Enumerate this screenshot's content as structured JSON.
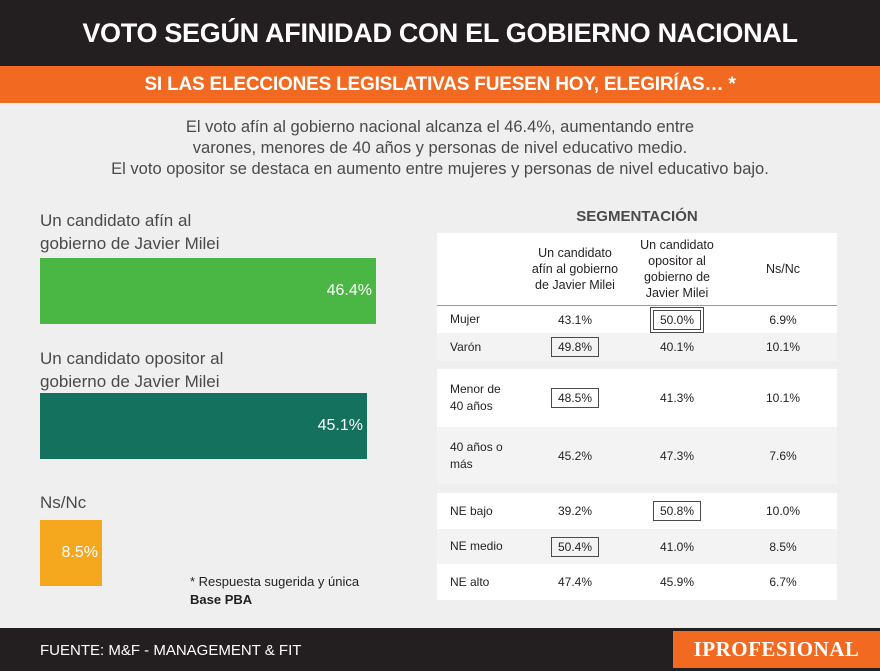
{
  "header": {
    "title": "VOTO SEGÚN AFINIDAD CON EL GOBIERNO NACIONAL",
    "subtitle": "SI LAS ELECCIONES LEGISLATIVAS FUESEN HOY, ELEGIRÍAS… *"
  },
  "intro": {
    "line1": "El voto afín al gobierno nacional alcanza el 46.4%, aumentando entre",
    "line2": "varones, menores de 40 años y personas de nivel educativo medio.",
    "line3": "El voto opositor se destaca en aumento entre mujeres y personas de nivel educativo bajo."
  },
  "chart_data": {
    "type": "bar",
    "orientation": "horizontal",
    "categories": [
      "Un candidato afín al gobierno de Javier Milei",
      "Un candidato opositor al gobierno de Javier Milei",
      "Ns/Nc"
    ],
    "category_lines": [
      [
        "Un candidato afín al",
        "gobierno de Javier Milei"
      ],
      [
        "Un candidato opositor al",
        "gobierno de Javier Milei"
      ],
      [
        "Ns/Nc"
      ]
    ],
    "values": [
      46.4,
      45.1,
      8.5
    ],
    "value_labels": [
      "46.4%",
      "45.1%",
      "8.5%"
    ],
    "colors": [
      "#4ab745",
      "#13715e",
      "#f5a81d"
    ],
    "xlim": [
      0,
      46.4
    ],
    "grid": false,
    "legend": "none"
  },
  "notes": {
    "note1": "* Respuesta sugerida y única",
    "note2": "Base PBA"
  },
  "segmentation": {
    "title": "SEGMENTACIÓN",
    "columns": [
      [
        "Un candidato",
        "afín al gobierno",
        "de Javier Milei"
      ],
      [
        "Un candidato",
        "opositor al",
        "gobierno de",
        "Javier Milei"
      ],
      [
        "Ns/Nc"
      ]
    ],
    "groups": [
      {
        "rows": [
          {
            "label": [
              "Mujer"
            ],
            "values": [
              "43.1%",
              "50.0%",
              "6.9%"
            ],
            "highlight": 1,
            "double": true
          },
          {
            "label": [
              "Varón"
            ],
            "values": [
              "49.8%",
              "40.1%",
              "10.1%"
            ],
            "highlight": 0
          }
        ]
      },
      {
        "rows": [
          {
            "label": [
              "Menor de",
              "40 años"
            ],
            "values": [
              "48.5%",
              "41.3%",
              "10.1%"
            ],
            "highlight": 0
          },
          {
            "label": [
              "40 años o",
              "más"
            ],
            "values": [
              "45.2%",
              "47.3%",
              "7.6%"
            ],
            "highlight": -1
          }
        ]
      },
      {
        "rows": [
          {
            "label": [
              "NE bajo"
            ],
            "values": [
              "39.2%",
              "50.8%",
              "10.0%"
            ],
            "highlight": 1
          },
          {
            "label": [
              "NE medio"
            ],
            "values": [
              "50.4%",
              "41.0%",
              "8.5%"
            ],
            "highlight": 0
          },
          {
            "label": [
              "NE alto"
            ],
            "values": [
              "47.4%",
              "45.9%",
              "6.7%"
            ],
            "highlight": -1
          }
        ]
      }
    ]
  },
  "footer": {
    "source": "FUENTE: M&F - MANAGEMENT & FIT",
    "brand": "IPROFESIONAL"
  }
}
